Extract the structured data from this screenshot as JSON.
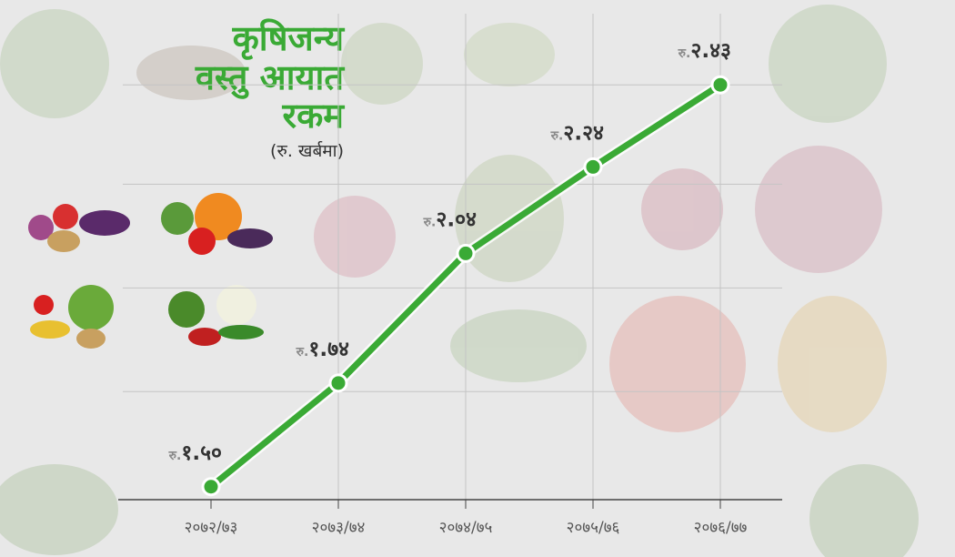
{
  "chart_data": {
    "type": "line",
    "title_lines": [
      "कृषिजन्य",
      "वस्तु आयात",
      "रकम"
    ],
    "subtitle": "(रु. खर्बमा)",
    "categories": [
      "२०७२/७३",
      "२०७३/७४",
      "२०७४/७५",
      "२०७५/७६",
      "२०७६/७७"
    ],
    "series": [
      {
        "color": "#3aaa35",
        "values": [
          1.5,
          1.74,
          2.04,
          2.24,
          2.43
        ],
        "value_prefix": "रु.",
        "value_labels": [
          "१.५०",
          "१.७४",
          "२.०४",
          "२.२४",
          "२.४३"
        ]
      }
    ],
    "ylim": [
      1.47,
      2.5
    ],
    "yticks": [
      1.72,
      1.96,
      2.2,
      2.43
    ],
    "grid": true
  }
}
